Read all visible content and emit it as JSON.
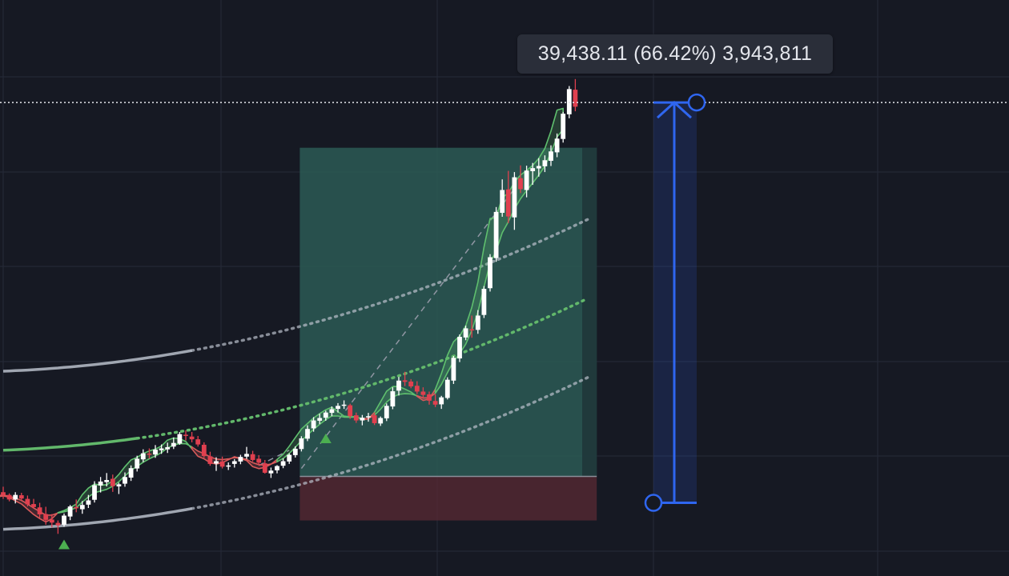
{
  "measure": {
    "label": "39,438.11 (66.42%) 3,943,811",
    "price_change": 39438.11,
    "percent_change": 66.42,
    "volume": 3943811
  },
  "colors": {
    "background": "#161923",
    "grid": "#262b38",
    "up_candle": "#ffffff",
    "down_candle": "#e0404f",
    "ribbon_up": "#5fbf6e",
    "ribbon_down": "#d85a5a",
    "channel": "#b9bfca",
    "midline": "#62b86b",
    "target_zone": "#2c5a55",
    "stop_zone": "#5a2a34",
    "measure_tool": "#2f66f0",
    "signal_arrow": "#4caf50"
  },
  "drawings": {
    "current_price_line": "dotted",
    "long_position_tool": "visible",
    "price_range_tool": "visible"
  },
  "chart_data": {
    "type": "candlestick",
    "series": [
      {
        "name": "",
        "ohlc": [
          [
            60.2,
            62.0,
            58.0,
            59.2
          ],
          [
            59.3,
            59.8,
            57.2,
            57.8
          ],
          [
            57.8,
            60.2,
            56.5,
            59.3
          ],
          [
            59.2,
            60.0,
            57.5,
            58.1
          ],
          [
            58.0,
            59.1,
            55.5,
            56.2
          ],
          [
            56.3,
            58.0,
            54.8,
            55.3
          ],
          [
            55.2,
            56.7,
            51.8,
            52.9
          ],
          [
            53.0,
            55.4,
            49.5,
            51.1
          ],
          [
            51.2,
            53.0,
            48.6,
            50.2
          ],
          [
            50.1,
            50.9,
            46.5,
            49.3
          ],
          [
            49.5,
            53.2,
            48.8,
            52.5
          ],
          [
            52.2,
            56.0,
            51.0,
            55.5
          ],
          [
            55.3,
            57.8,
            53.6,
            54.9
          ],
          [
            54.6,
            57.3,
            53.1,
            56.0
          ],
          [
            56.1,
            59.3,
            55.0,
            57.5
          ],
          [
            57.7,
            63.8,
            56.8,
            62.5
          ],
          [
            62.4,
            65.2,
            60.1,
            63.7
          ],
          [
            63.5,
            66.5,
            62.1,
            64.2
          ],
          [
            64.6,
            66.0,
            60.3,
            62.2
          ],
          [
            62.1,
            63.3,
            59.6,
            62.8
          ],
          [
            63.0,
            66.7,
            62.0,
            65.2
          ],
          [
            65.0,
            69.0,
            63.9,
            68.1
          ],
          [
            68.0,
            72.2,
            67.0,
            71.2
          ],
          [
            71.0,
            74.3,
            70.1,
            73.0
          ],
          [
            72.9,
            74.6,
            71.3,
            72.5
          ],
          [
            72.6,
            75.7,
            71.5,
            74.2
          ],
          [
            74.0,
            75.9,
            72.8,
            74.6
          ],
          [
            74.3,
            76.5,
            73.1,
            75.0
          ],
          [
            75.2,
            78.2,
            74.4,
            76.4
          ],
          [
            76.2,
            80.0,
            75.8,
            79.3
          ],
          [
            79.1,
            80.5,
            77.2,
            78.7
          ],
          [
            78.5,
            80.0,
            76.6,
            77.6
          ],
          [
            77.6,
            78.7,
            75.2,
            75.9
          ],
          [
            75.8,
            76.6,
            71.5,
            72.1
          ],
          [
            72.0,
            73.5,
            68.9,
            69.5
          ],
          [
            69.6,
            71.7,
            67.2,
            70.4
          ],
          [
            70.3,
            71.9,
            68.0,
            68.6
          ],
          [
            68.7,
            70.0,
            67.5,
            69.0
          ],
          [
            69.5,
            71.1,
            68.3,
            70.4
          ],
          [
            70.3,
            72.5,
            69.4,
            71.8
          ],
          [
            71.9,
            75.1,
            71.1,
            72.8
          ],
          [
            72.7,
            73.8,
            70.3,
            70.8
          ],
          [
            71.2,
            72.4,
            69.1,
            69.9
          ],
          [
            69.7,
            70.8,
            66.3,
            66.6
          ],
          [
            66.4,
            68.3,
            64.9,
            67.3
          ],
          [
            67.4,
            69.1,
            66.4,
            68.8
          ],
          [
            68.9,
            71.3,
            68.1,
            70.4
          ],
          [
            70.3,
            73.0,
            69.5,
            72.5
          ],
          [
            72.4,
            75.3,
            71.6,
            74.5
          ],
          [
            74.4,
            78.6,
            73.6,
            77.9
          ],
          [
            77.8,
            82.2,
            77.0,
            81.0
          ],
          [
            81.2,
            84.9,
            80.1,
            83.8
          ],
          [
            83.7,
            86.0,
            82.6,
            84.6
          ],
          [
            84.7,
            87.0,
            83.7,
            86.4
          ],
          [
            86.3,
            88.4,
            85.2,
            87.5
          ],
          [
            87.6,
            89.5,
            86.4,
            88.6
          ],
          [
            88.7,
            90.4,
            87.6,
            89.0
          ],
          [
            88.8,
            89.3,
            84.3,
            85.2
          ],
          [
            85.5,
            86.4,
            83.0,
            83.8
          ],
          [
            83.8,
            85.6,
            82.2,
            84.7
          ],
          [
            84.8,
            86.3,
            83.4,
            85.2
          ],
          [
            85.5,
            86.4,
            82.3,
            82.9
          ],
          [
            82.8,
            85.1,
            82.0,
            84.6
          ],
          [
            84.5,
            89.4,
            83.6,
            88.6
          ],
          [
            88.4,
            94.7,
            87.5,
            93.4
          ],
          [
            93.6,
            98.1,
            92.0,
            96.9
          ],
          [
            97.0,
            99.8,
            95.1,
            96.5
          ],
          [
            96.6,
            97.4,
            94.4,
            95.0
          ],
          [
            95.2,
            96.7,
            92.5,
            93.3
          ],
          [
            93.3,
            94.7,
            90.9,
            92.2
          ],
          [
            92.4,
            93.3,
            89.0,
            90.3
          ],
          [
            90.2,
            92.4,
            88.2,
            89.0
          ],
          [
            89.1,
            91.9,
            87.6,
            91.4
          ],
          [
            91.2,
            98.0,
            90.7,
            97.2
          ],
          [
            96.9,
            105.0,
            95.8,
            104.4
          ],
          [
            104.2,
            112.1,
            103.0,
            111.3
          ],
          [
            111.1,
            115.0,
            110.2,
            114.1
          ],
          [
            113.8,
            118.3,
            111.0,
            113.5
          ],
          [
            113.6,
            120.1,
            112.3,
            118.3
          ],
          [
            118.5,
            128.0,
            117.5,
            127.1
          ],
          [
            127.3,
            138.5,
            126.2,
            137.5
          ],
          [
            137.2,
            154.0,
            136.0,
            152.4
          ],
          [
            152.1,
            163.1,
            150.8,
            159.6
          ],
          [
            159.8,
            165.9,
            148.7,
            150.9
          ],
          [
            150.6,
            165.5,
            146.5,
            163.8
          ],
          [
            163.5,
            167.7,
            158.6,
            159.9
          ],
          [
            159.6,
            167.6,
            157.2,
            166.0
          ],
          [
            165.8,
            168.5,
            161.3,
            166.8
          ],
          [
            166.7,
            170.1,
            164.0,
            167.5
          ],
          [
            167.4,
            171.0,
            165.5,
            169.4
          ],
          [
            169.2,
            174.3,
            167.5,
            172.3
          ],
          [
            172.0,
            178.2,
            170.4,
            176.5
          ],
          [
            176.4,
            185.3,
            175.2,
            184.7
          ],
          [
            184.5,
            193.8,
            183.2,
            192.8
          ],
          [
            192.6,
            196.1,
            185.5,
            187.0
          ]
        ]
      }
    ],
    "bollinger_channel": {
      "upper_start": 100,
      "upper_end": 148,
      "lower_start": 48,
      "lower_end": 96
    },
    "long_position": {
      "entry": 65.4,
      "target": 173.5,
      "stop": 50.9
    },
    "price_range": {
      "from": 56.7,
      "to": 188.4
    },
    "current_price": 188.4,
    "signal_arrows": [
      10,
      53
    ]
  }
}
